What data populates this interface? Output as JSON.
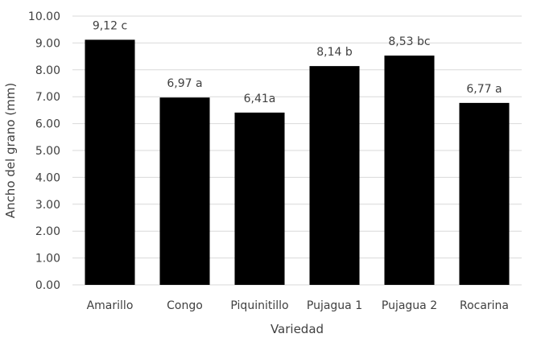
{
  "chart_data": {
    "type": "bar",
    "title": "",
    "xlabel": "Variedad",
    "ylabel": "Ancho del grano (mm)",
    "ylim": [
      0,
      10
    ],
    "yticks": [
      "0.00",
      "1.00",
      "2.00",
      "3.00",
      "4.00",
      "5.00",
      "6.00",
      "7.00",
      "8.00",
      "9.00",
      "10.00"
    ],
    "grid": true,
    "categories": [
      "Amarillo",
      "Congo",
      "Piquinitillo",
      "Pujagua 1",
      "Pujagua 2",
      "Rocarina"
    ],
    "values": [
      9.12,
      6.97,
      6.41,
      8.14,
      8.53,
      6.77
    ],
    "data_labels": [
      "9,12 c",
      "6,97 a",
      "6,41a",
      "8,14 b",
      "8,53 bc",
      "6,77 a"
    ],
    "bar_color": "#000000",
    "grid_color": "#d9d9d9"
  }
}
